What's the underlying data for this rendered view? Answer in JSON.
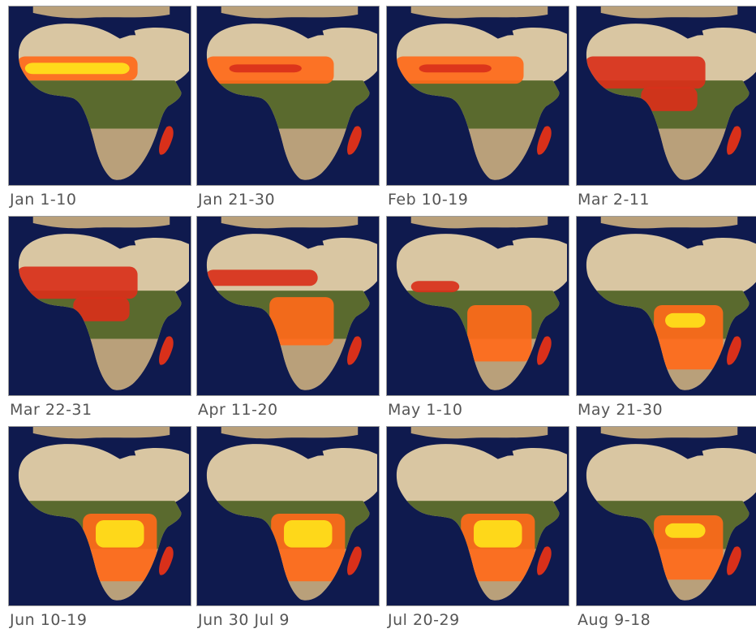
{
  "panels": [
    {
      "label": "Jan 1-10"
    },
    {
      "label": "Jan 21-30"
    },
    {
      "label": "Feb 10-19"
    },
    {
      "label": "Mar 2-11"
    },
    {
      "label": "Mar 22-31"
    },
    {
      "label": "Apr 11-20"
    },
    {
      "label": "May 1-10"
    },
    {
      "label": "May 21-30"
    },
    {
      "label": "Jun 10-19"
    },
    {
      "label": "Jun 30 Jul 9"
    },
    {
      "label": "Jul 20-29"
    },
    {
      "label": "Aug 9-18"
    }
  ],
  "colors": {
    "ocean": "#0f1a4e",
    "desert": "#d9c6a2",
    "vegetation": "#5a6a2e",
    "savanna": "#b9a07a",
    "fire_high": "#ffe21a",
    "fire_mid": "#ff6a1a",
    "fire_low": "#d9301a"
  }
}
